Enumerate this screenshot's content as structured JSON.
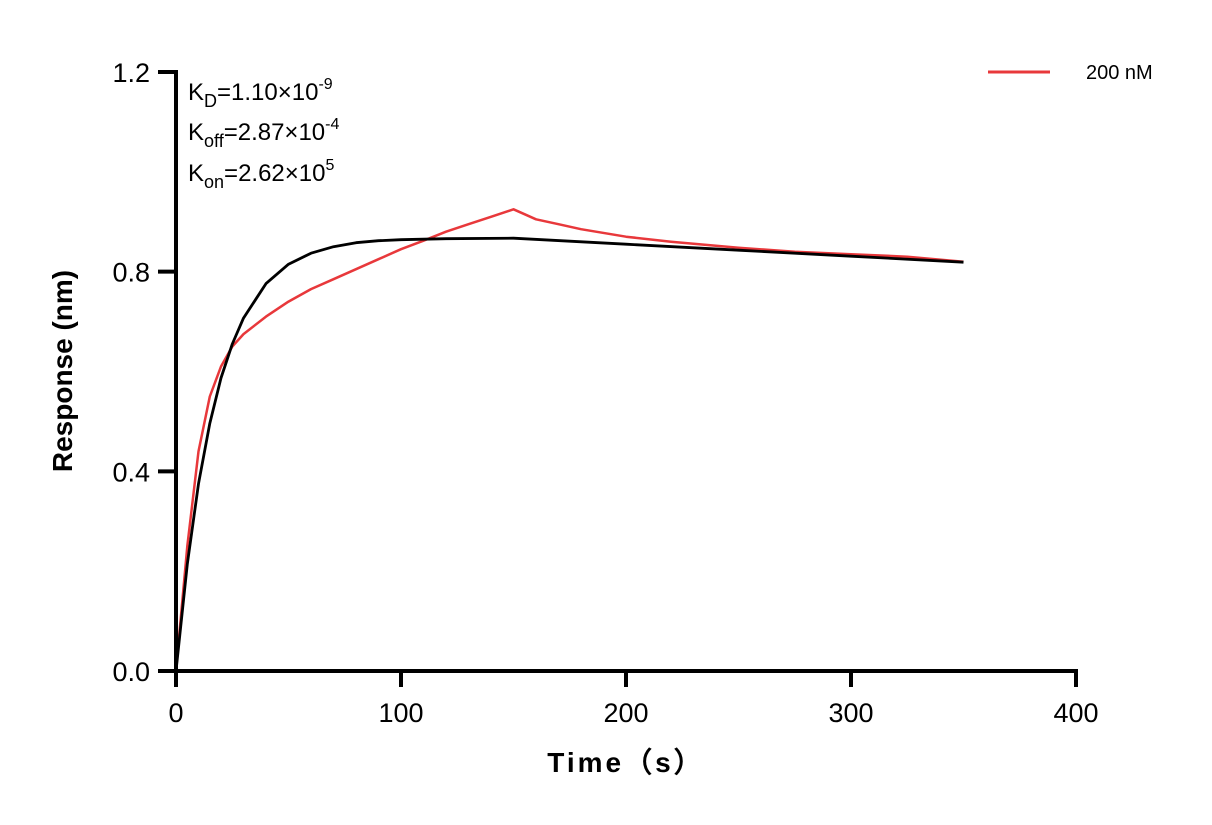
{
  "chart_data": {
    "type": "line",
    "title": "",
    "xlabel": "Time（s）",
    "ylabel": "Response (nm)",
    "xlim": [
      0,
      400
    ],
    "ylim": [
      0,
      1.2
    ],
    "xticks": [
      "0",
      "100",
      "200",
      "300",
      "400"
    ],
    "yticks": [
      "0.0",
      "0.4",
      "0.8",
      "1.2"
    ],
    "xtick_values": [
      0,
      100,
      200,
      300,
      400
    ],
    "ytick_values": [
      0,
      0.4,
      0.8,
      1.2
    ],
    "grid": false,
    "legend_position": "top-right",
    "annotations": {
      "kd": {
        "base": "K",
        "sub": "D",
        "text": "=1.10×10",
        "sup": "-9"
      },
      "koff": {
        "base": "K",
        "sub": "off",
        "text": "=2.87×10",
        "sup": "-4"
      },
      "kon": {
        "base": "K",
        "sub": "on",
        "text": "=2.62×10",
        "sup": "5"
      }
    },
    "series": [
      {
        "name": "200 nM",
        "color": "#e8383b",
        "x": [
          0,
          2,
          5,
          10,
          15,
          20,
          25,
          30,
          40,
          50,
          60,
          70,
          80,
          90,
          100,
          110,
          120,
          130,
          140,
          150,
          155,
          160,
          170,
          180,
          200,
          220,
          250,
          275,
          300,
          325,
          350
        ],
        "y": [
          0,
          0.1,
          0.25,
          0.44,
          0.55,
          0.61,
          0.65,
          0.675,
          0.71,
          0.74,
          0.765,
          0.785,
          0.805,
          0.825,
          0.845,
          0.862,
          0.88,
          0.895,
          0.91,
          0.925,
          0.915,
          0.905,
          0.895,
          0.885,
          0.87,
          0.86,
          0.848,
          0.84,
          0.835,
          0.83,
          0.82
        ]
      },
      {
        "color": "#000000",
        "x": [
          0,
          5,
          10,
          15,
          20,
          25,
          30,
          40,
          50,
          60,
          70,
          80,
          90,
          100,
          120,
          150,
          200,
          250,
          300,
          350
        ],
        "y": [
          0,
          0.214,
          0.375,
          0.496,
          0.587,
          0.655,
          0.707,
          0.776,
          0.815,
          0.837,
          0.85,
          0.858,
          0.862,
          0.864,
          0.866,
          0.867,
          0.855,
          0.843,
          0.831,
          0.819
        ]
      }
    ]
  }
}
